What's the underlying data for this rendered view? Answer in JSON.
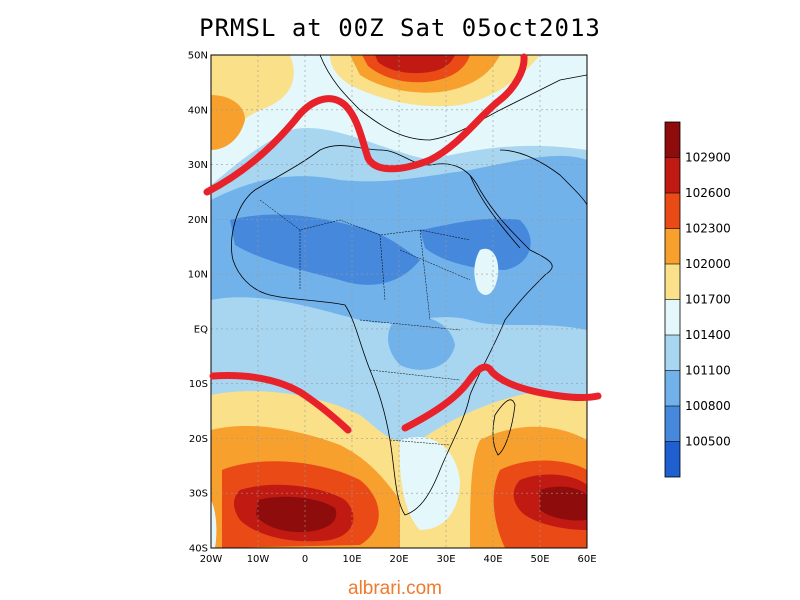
{
  "title": "PRMSL at 00Z Sat 05oct2013",
  "credit": "albrari.com",
  "lat_labels": [
    "50N",
    "40N",
    "30N",
    "20N",
    "10N",
    "EQ",
    "10S",
    "20S",
    "30S",
    "40S"
  ],
  "lon_labels": [
    "20W",
    "10W",
    "0",
    "10E",
    "20E",
    "30E",
    "40E",
    "50E",
    "60E"
  ],
  "colorbar": {
    "labels": [
      "102900",
      "102600",
      "102300",
      "102000",
      "101700",
      "101400",
      "101100",
      "100800",
      "100500"
    ],
    "colors": [
      "#8e0c0c",
      "#c11a12",
      "#ea4a16",
      "#f7a02e",
      "#fbe08a",
      "#e4f7fb",
      "#a8d6f1",
      "#72b2eb",
      "#4688dc",
      "#1f5fcf"
    ]
  }
}
